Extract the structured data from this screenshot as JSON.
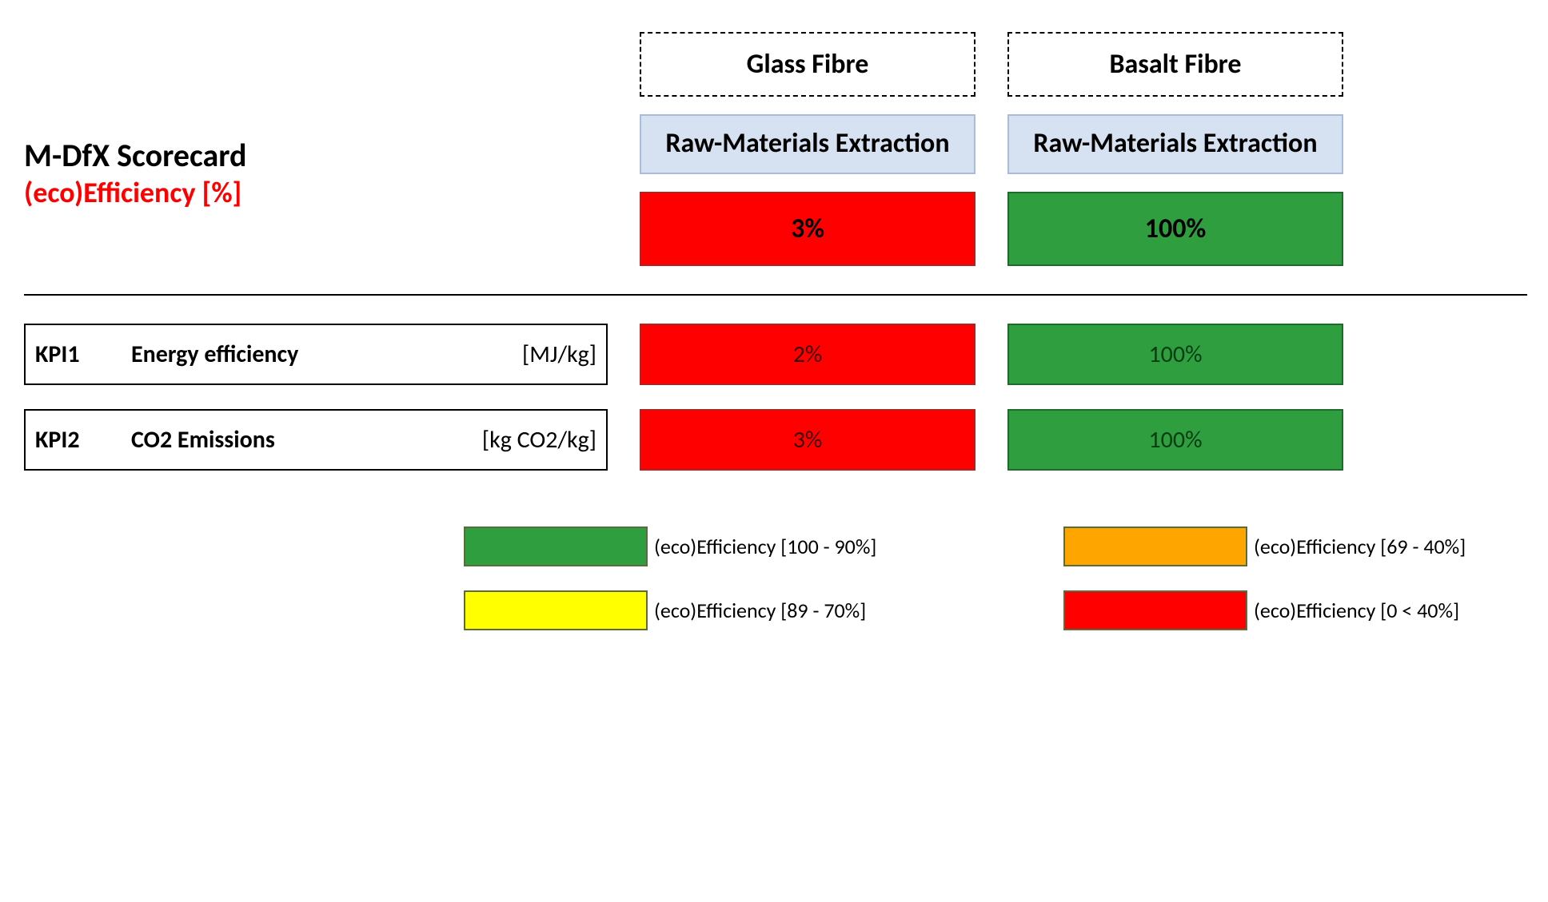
{
  "colors": {
    "red": "#ff0000",
    "green": "#2e9e3f",
    "yellow": "#ffff00",
    "orange": "#ffa500",
    "lightblue": "#d6e1f1",
    "lightblue_border": "#a9bcd9",
    "black": "#000000",
    "title_red": "#ff0000",
    "swatch_border": "#5a6b3c",
    "kpi_text_dark": "#111111"
  },
  "title": {
    "line1": "M-DfX Scorecard",
    "line2": "(eco)Efficiency [%]"
  },
  "columns": [
    {
      "header": "Glass Fibre",
      "subheader": "Raw-Materials Extraction",
      "score": {
        "value": "3%",
        "bg": "#ff0000",
        "border": "#b22222"
      }
    },
    {
      "header": "Basalt Fibre",
      "subheader": "Raw-Materials Extraction",
      "score": {
        "value": "100%",
        "bg": "#2e9e3f",
        "border": "#1f6b2b"
      }
    }
  ],
  "kpis": [
    {
      "id": "KPI1",
      "name": "Energy efficiency",
      "unit": "[MJ/kg]",
      "values": [
        {
          "value": "2%",
          "bg": "#ff0000",
          "border": "#b22222",
          "text": "#3a0000"
        },
        {
          "value": "100%",
          "bg": "#2e9e3f",
          "border": "#1f6b2b",
          "text": "#063d12"
        }
      ]
    },
    {
      "id": "KPI2",
      "name": "CO2 Emissions",
      "unit": "[kg CO2/kg]",
      "values": [
        {
          "value": "3%",
          "bg": "#ff0000",
          "border": "#b22222",
          "text": "#3a0000"
        },
        {
          "value": "100%",
          "bg": "#2e9e3f",
          "border": "#1f6b2b",
          "text": "#063d12"
        }
      ]
    }
  ],
  "legend": [
    {
      "color": "#2e9e3f",
      "label": "(eco)Efficiency [100 - 90%]"
    },
    {
      "color": "#ffa500",
      "label": "(eco)Efficiency [69 - 40%]"
    },
    {
      "color": "#ffff00",
      "label": "(eco)Efficiency [89 - 70%]"
    },
    {
      "color": "#ff0000",
      "label": "(eco)Efficiency  [0 < 40%]"
    }
  ],
  "fonts": {
    "title_fontsize": 40,
    "subtitle_fontsize": 36,
    "header_fontsize": 34,
    "kpi_fontsize": 30,
    "legend_fontsize": 26
  }
}
